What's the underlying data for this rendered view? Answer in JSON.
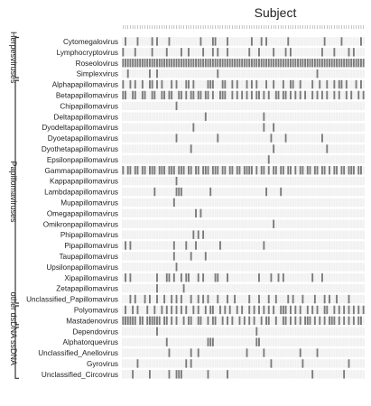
{
  "chart_data": {
    "type": "heatmap",
    "title": "Subject",
    "colors": {
      "present": "#7a7a7a",
      "absent": "#f1f1f1",
      "grid": "#ffffff"
    },
    "rows": [
      "Cytomegalovirus",
      "Lymphocryptovirus",
      "Roseolovirus",
      "Simplexvirus",
      "Alphapapillomavirus",
      "Betapapillomavirus",
      "Chipapillomavirus",
      "Deltapapillomavirus",
      "Dyodeltapapillomavirus",
      "Dyoetapapillomavirus",
      "Dyothetapapillomavirus",
      "Epsilonpapillomavirus",
      "Gammapapillomavirus",
      "Kappapapillomavirus",
      "Lambdapapillomavirus",
      "Mupapillomavirus",
      "Omegapapillomavirus",
      "Omikronpapillomavirus",
      "Phipapillomavirus",
      "Pipapillomavirus",
      "Taupapillomavirus",
      "Upsilonpapillomavirus",
      "Xipapillomavirus",
      "Zetapapillomavirus",
      "Unclassified_Papillomavirus",
      "Polyomavirus",
      "Mastadenovirus",
      "Dependovirus",
      "Alphatorquevirus",
      "Unclassified_Anellovirus",
      "Gyrovirus",
      "Unclassified_Circovirus"
    ],
    "groups": [
      {
        "label": "Herpesviruses",
        "start": 0,
        "end": 3
      },
      {
        "label": "Papillomaviruses",
        "start": 4,
        "end": 24
      },
      {
        "label": "other dsDNA",
        "start": 25,
        "end": 26
      },
      {
        "label": "ssDNA",
        "start": 27,
        "end": 31
      }
    ],
    "n_subjects": 100,
    "present": [
      [
        1,
        6,
        12,
        14,
        19,
        32,
        37,
        38,
        43,
        53,
        57,
        59,
        68,
        83,
        90,
        98
      ],
      [
        0,
        5,
        12,
        18,
        24,
        27,
        33,
        37,
        39,
        43,
        52,
        56,
        62,
        67,
        69,
        82,
        87,
        93,
        95
      ],
      [
        0,
        1,
        2,
        3,
        4,
        5,
        6,
        7,
        8,
        9,
        10,
        11,
        12,
        13,
        14,
        15,
        16,
        17,
        18,
        19,
        20,
        21,
        22,
        23,
        24,
        25,
        26,
        27,
        28,
        29,
        30,
        31,
        32,
        33,
        34,
        35,
        36,
        37,
        38,
        39,
        40,
        41,
        42,
        43,
        44,
        45,
        46,
        47,
        48,
        49,
        50,
        51,
        52,
        53,
        54,
        55,
        56,
        57,
        58,
        59,
        60,
        61,
        62,
        63,
        64,
        65,
        66,
        67,
        68,
        69,
        70,
        71,
        72,
        73,
        74,
        75,
        76,
        77,
        78,
        79,
        80,
        81,
        82,
        83,
        84,
        85,
        86,
        87,
        88,
        89,
        90,
        91,
        92,
        93,
        94,
        95,
        96,
        97,
        98,
        99
      ],
      [
        2,
        11,
        14,
        39,
        80
      ],
      [
        0,
        3,
        5,
        8,
        11,
        12,
        14,
        16,
        20,
        22,
        26,
        27,
        29,
        35,
        36,
        37,
        41,
        42,
        45,
        47,
        51,
        53,
        55,
        59,
        62,
        66,
        69,
        70,
        73,
        78,
        81,
        84,
        87,
        89,
        90,
        92,
        96,
        98
      ],
      [
        0,
        1,
        4,
        5,
        8,
        9,
        12,
        13,
        16,
        17,
        19,
        20,
        23,
        24,
        26,
        28,
        29,
        31,
        32,
        34,
        35,
        37,
        40,
        41,
        42,
        45,
        47,
        49,
        51,
        53,
        55,
        56,
        58,
        60,
        63,
        64,
        66,
        67,
        69,
        71,
        73,
        75,
        78,
        80,
        82,
        84,
        87,
        89,
        92,
        94,
        97,
        99
      ],
      [
        22
      ],
      [
        34,
        58
      ],
      [
        29,
        58,
        62
      ],
      [
        22,
        39,
        61,
        67,
        82
      ],
      [
        28,
        62,
        84
      ],
      [
        60
      ],
      [
        0,
        2,
        3,
        5,
        6,
        8,
        9,
        11,
        12,
        13,
        15,
        16,
        17,
        19,
        20,
        21,
        23,
        24,
        25,
        27,
        28,
        30,
        31,
        33,
        34,
        35,
        37,
        38,
        39,
        41,
        42,
        44,
        45,
        47,
        48,
        50,
        51,
        52,
        53,
        55,
        57,
        58,
        60,
        62,
        63,
        65,
        66,
        68,
        69,
        71,
        73,
        74,
        76,
        77,
        79,
        80,
        82,
        83,
        85,
        87,
        88,
        90,
        91,
        93,
        94,
        95,
        97,
        98
      ],
      [
        22
      ],
      [
        13,
        22,
        23,
        24,
        36,
        59,
        65
      ],
      [
        21
      ],
      [
        30,
        32
      ],
      [
        62
      ],
      [
        29,
        31,
        33
      ],
      [
        1,
        3,
        21,
        26,
        30,
        40,
        58
      ],
      [
        21,
        28,
        34
      ],
      [
        22
      ],
      [
        1,
        3,
        14,
        18,
        19,
        21,
        24,
        26,
        27,
        31,
        33,
        38,
        39,
        43,
        56,
        61,
        64,
        66,
        78,
        82
      ],
      [
        14,
        25
      ],
      [
        3,
        5,
        9,
        11,
        14,
        17,
        20,
        22,
        24,
        28,
        31,
        33,
        35,
        39,
        43,
        46,
        52,
        56,
        60,
        63,
        68,
        70,
        74,
        79,
        83,
        85,
        88,
        93
      ],
      [
        1,
        4,
        6,
        10,
        13,
        16,
        18,
        20,
        22,
        24,
        26,
        29,
        31,
        34,
        36,
        37,
        40,
        42,
        44,
        47,
        49,
        52,
        54,
        56,
        58,
        60,
        62,
        65,
        66,
        67,
        69,
        71,
        73,
        76,
        78,
        80,
        83,
        84,
        87,
        89,
        91,
        93,
        95,
        97,
        99
      ],
      [
        0,
        1,
        2,
        3,
        4,
        5,
        7,
        8,
        10,
        11,
        12,
        13,
        14,
        15,
        17,
        18,
        20,
        22,
        25,
        27,
        28,
        31,
        32,
        35,
        37,
        38,
        41,
        43,
        45,
        48,
        50,
        52,
        54,
        57,
        59,
        60,
        63,
        66,
        67,
        69,
        71,
        73,
        75,
        76,
        77,
        79,
        81,
        83,
        85,
        86,
        87,
        89,
        91,
        93,
        95,
        97,
        98
      ],
      [
        14,
        55
      ],
      [
        18,
        35,
        36,
        37,
        55,
        56
      ],
      [
        19,
        28,
        31,
        51,
        58,
        73,
        80
      ],
      [
        6,
        26,
        28,
        61,
        74,
        93
      ],
      [
        4,
        11,
        19,
        22,
        23,
        24,
        35,
        43,
        78,
        91
      ]
    ]
  }
}
